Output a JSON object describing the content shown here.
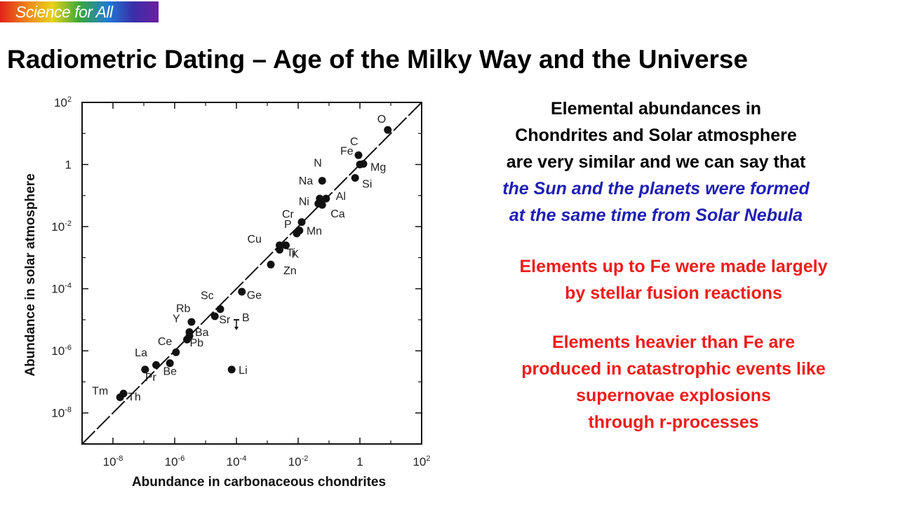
{
  "logo": {
    "text": "Science for All"
  },
  "title": "Radiometric Dating – Age of the Milky Way and the Universe",
  "paragraphs": {
    "p1": {
      "lines": [
        "Elemental abundances in",
        "Chondrites and Solar atmosphere",
        "are very similar and we can say that"
      ],
      "emphasis": [
        "the Sun and the planets were formed",
        "at the same time from Solar Nebula"
      ]
    },
    "p2": {
      "lines": [
        "Elements up to Fe were made largely",
        "by stellar fusion reactions"
      ]
    },
    "p3": {
      "lines": [
        "Elements heavier than Fe are",
        "produced in catastrophic events like",
        "supernovae explosions",
        "through r-processes"
      ]
    }
  },
  "colors": {
    "text": "#000000",
    "emphasis_blue": "#1f1fb4",
    "highlight_red": "#ef1c1c"
  },
  "chart_data": {
    "type": "scatter",
    "xlabel": "Abundance in carbonaceous chondrites",
    "ylabel": "Abundance in solar atmosphere",
    "xscale": "log",
    "yscale": "log",
    "xlim": [
      1e-09,
      100
    ],
    "ylim": [
      1e-09,
      100
    ],
    "x_ticks": [
      {
        "value": 1e-08,
        "base": "10",
        "exp": "-8"
      },
      {
        "value": 1e-06,
        "base": "10",
        "exp": "-6"
      },
      {
        "value": 0.0001,
        "base": "10",
        "exp": "-4"
      },
      {
        "value": 0.01,
        "base": "10",
        "exp": "-2"
      },
      {
        "value": 1,
        "base": "1",
        "exp": ""
      },
      {
        "value": 100,
        "base": "10",
        "exp": "2"
      }
    ],
    "y_ticks": [
      {
        "value": 100,
        "base": "10",
        "exp": "2"
      },
      {
        "value": 1,
        "base": "1",
        "exp": ""
      },
      {
        "value": 0.01,
        "base": "10",
        "exp": "-2"
      },
      {
        "value": 0.0001,
        "base": "10",
        "exp": "-4"
      },
      {
        "value": 1e-06,
        "base": "10",
        "exp": "-6"
      },
      {
        "value": 1e-08,
        "base": "10",
        "exp": "-8"
      }
    ],
    "reference_line": "y = x",
    "points": [
      {
        "label": "O",
        "x": 8,
        "y": 13
      },
      {
        "label": "C",
        "x": 0.9,
        "y": 2
      },
      {
        "label": "N",
        "x": 0.06,
        "y": 0.3
      },
      {
        "label": "Fe",
        "x": 1,
        "y": 1
      },
      {
        "label": "Mg",
        "x": 1.3,
        "y": 1.05
      },
      {
        "label": "Si",
        "x": 0.7,
        "y": 0.37
      },
      {
        "label": "Na",
        "x": 0.05,
        "y": 0.08
      },
      {
        "label": "Ni",
        "x": 0.045,
        "y": 0.055
      },
      {
        "label": "Al",
        "x": 0.08,
        "y": 0.08
      },
      {
        "label": "Ca",
        "x": 0.06,
        "y": 0.05
      },
      {
        "label": "Cr",
        "x": 0.013,
        "y": 0.014
      },
      {
        "label": "P",
        "x": 0.009,
        "y": 0.006
      },
      {
        "label": "Mn",
        "x": 0.011,
        "y": 0.0075
      },
      {
        "label": "K",
        "x": 0.004,
        "y": 0.0025
      },
      {
        "label": "Cu",
        "x": 0.0025,
        "y": 0.0018
      },
      {
        "label": "Ti",
        "x": 0.0025,
        "y": 0.0025
      },
      {
        "label": "Zn",
        "x": 0.0013,
        "y": 0.0006
      },
      {
        "label": "Ge",
        "x": 0.00015,
        "y": 8e-05
      },
      {
        "label": "Sc",
        "x": 3e-05,
        "y": 2.2e-05
      },
      {
        "label": "Sr",
        "x": 2e-05,
        "y": 1.3e-05
      },
      {
        "label": "Rb",
        "x": 3.5e-06,
        "y": 8.5e-06
      },
      {
        "label": "Y",
        "x": 3e-06,
        "y": 4e-06
      },
      {
        "label": "Ba",
        "x": 3e-06,
        "y": 3e-06
      },
      {
        "label": "Pb",
        "x": 2.5e-06,
        "y": 2.3e-06
      },
      {
        "label": "Ce",
        "x": 1.1e-06,
        "y": 9e-07
      },
      {
        "label": "La",
        "x": 7e-07,
        "y": 4e-07
      },
      {
        "label": "Pr",
        "x": 1.1e-07,
        "y": 2.5e-07
      },
      {
        "label": "Be",
        "x": 2.5e-07,
        "y": 3.5e-07
      },
      {
        "label": "Tm",
        "x": 1.7e-08,
        "y": 3.2e-08
      },
      {
        "label": "Th",
        "x": 2.2e-08,
        "y": 4.2e-08
      },
      {
        "label": "Li",
        "x": 7e-05,
        "y": 2.5e-07
      },
      {
        "label": "B",
        "x": 0.0001,
        "y": 1e-05,
        "marker": "upper-limit"
      }
    ]
  }
}
